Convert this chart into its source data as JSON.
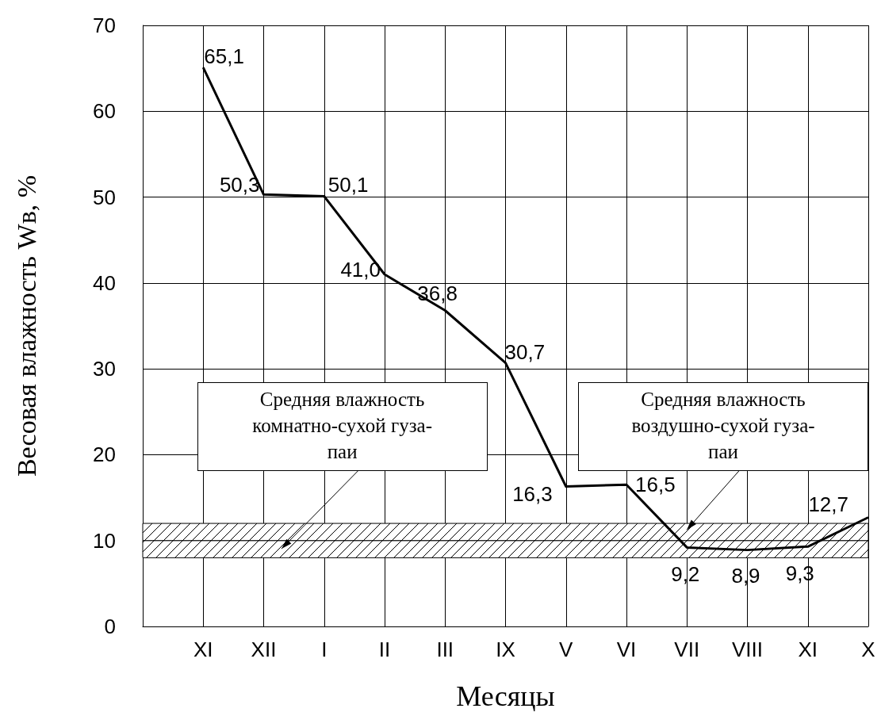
{
  "chart_data": {
    "type": "line",
    "xlabel": "Месяцы",
    "ylabel": "Весовая влажность Wв, %",
    "categories": [
      "XI",
      "XII",
      "I",
      "II",
      "III",
      "IX",
      "V",
      "VI",
      "VII",
      "VIII",
      "XI",
      "X"
    ],
    "series": [
      {
        "color": "#000000",
        "values": [
          65.1,
          50.3,
          50.1,
          41.0,
          36.8,
          30.7,
          16.3,
          16.5,
          9.2,
          8.9,
          9.3,
          12.7
        ]
      }
    ],
    "value_labels": [
      "65,1",
      "50,3",
      "50,1",
      "41,0",
      "36,8",
      "30,7",
      "16,3",
      "16,5",
      "9,2",
      "8,9",
      "9,3",
      "12,7"
    ],
    "ylim": [
      0,
      70
    ],
    "yticks": [
      0,
      10,
      20,
      30,
      40,
      50,
      60,
      70
    ],
    "grid": true,
    "marker": "none",
    "line_style": "solid",
    "bands": [
      {
        "axis": "y",
        "from": 8,
        "to": 10,
        "label": "Средняя влажность комнатно-сухой гуза-паи"
      },
      {
        "axis": "y",
        "from": 10,
        "to": 12,
        "label": "Средняя влажность воздушно-сухой гуза-паи"
      }
    ]
  }
}
